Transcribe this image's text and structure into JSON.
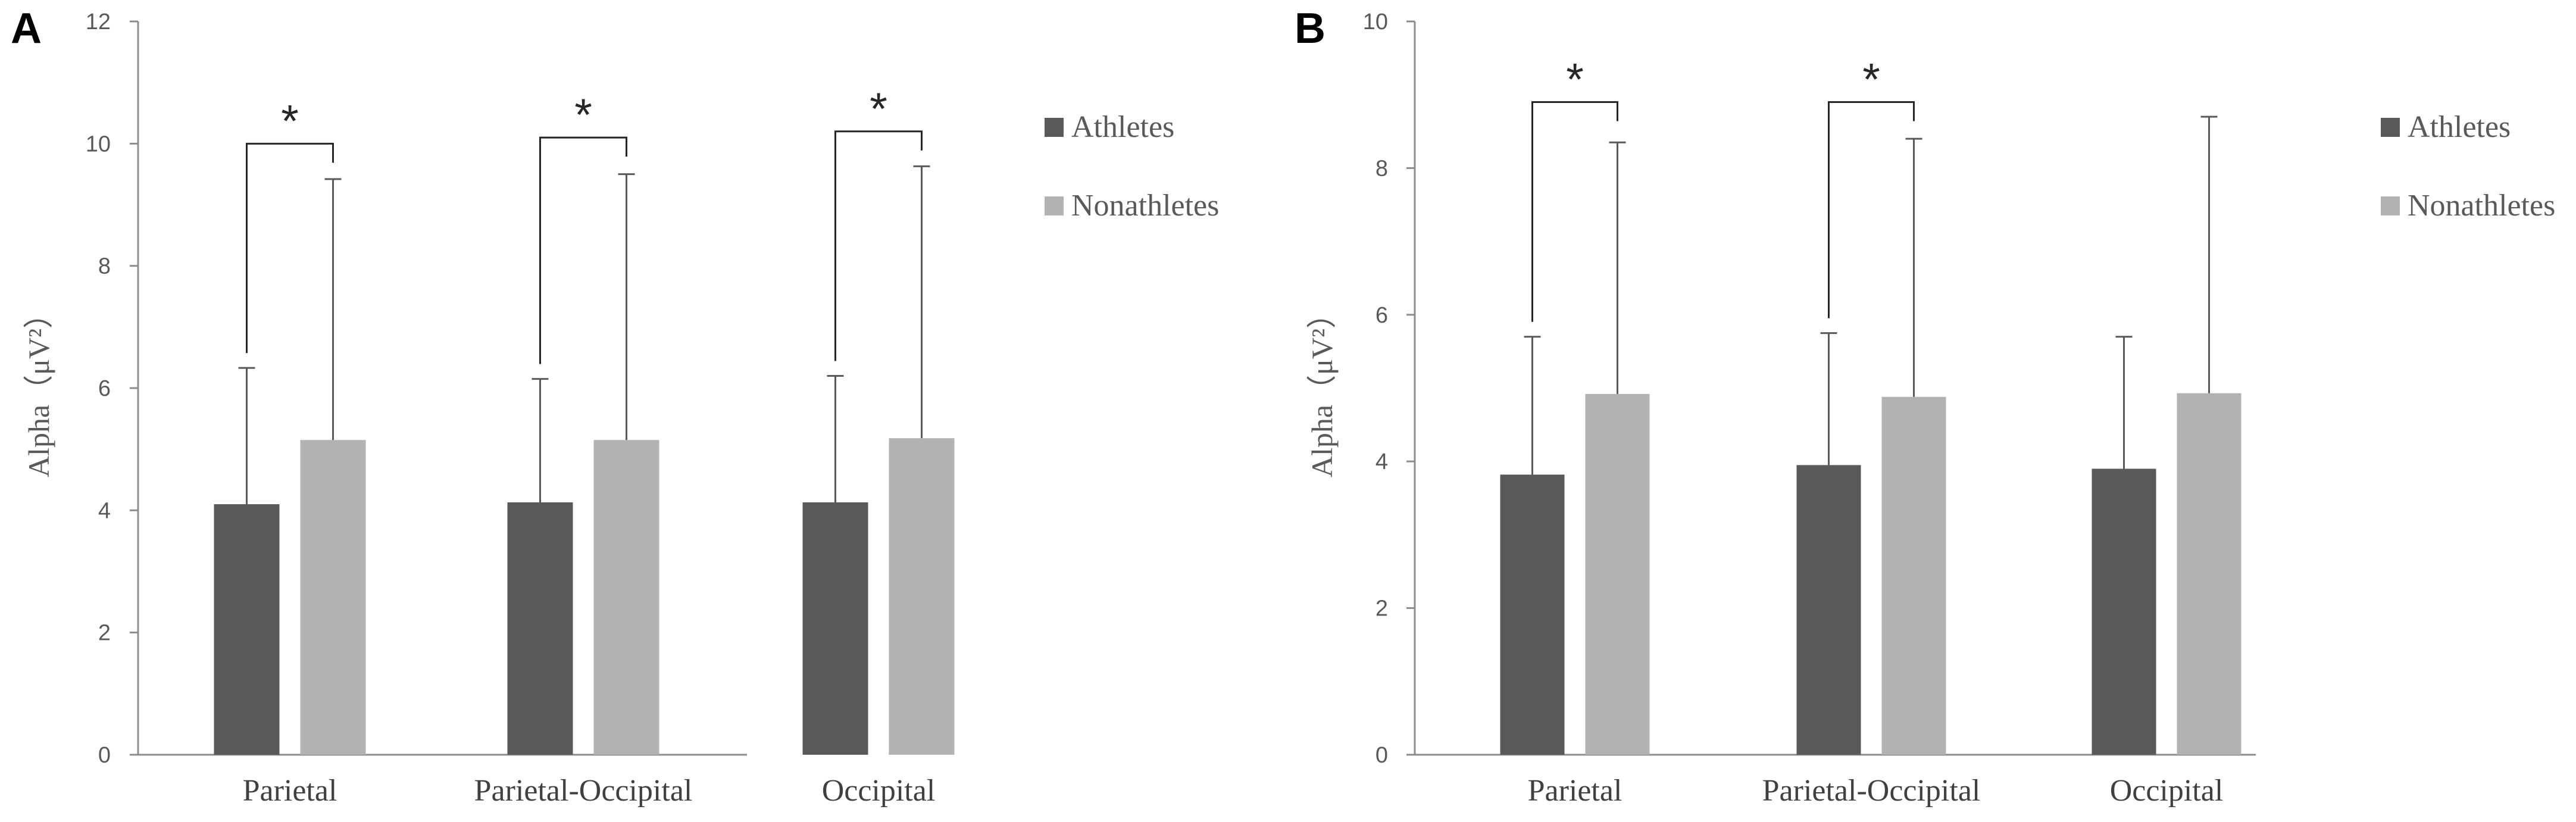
{
  "colors": {
    "athletes": "#595959",
    "nonathletes": "#b2b2b2",
    "axis": "#8c8c8c",
    "error": "#595959",
    "bracket": "#262626"
  },
  "chart_data": [
    {
      "panel": "A",
      "type": "bar",
      "ylabel": "Alpha（μV²）",
      "ylim": [
        0,
        12
      ],
      "yticks": [
        0,
        2,
        4,
        6,
        8,
        10,
        12
      ],
      "categories": [
        "Parietal",
        "Parietal-Occipital",
        "Occipital"
      ],
      "series": [
        {
          "name": "Athletes",
          "values": [
            4.1,
            4.13,
            4.13
          ],
          "error_upper": [
            6.33,
            6.15,
            6.2
          ]
        },
        {
          "name": "Nonathletes",
          "values": [
            5.15,
            5.15,
            5.18
          ],
          "error_upper": [
            9.42,
            9.5,
            9.63
          ]
        }
      ],
      "significance": [
        {
          "category_index": 0,
          "label": "*",
          "bracket_y": 10.0
        },
        {
          "category_index": 1,
          "label": "*",
          "bracket_y": 10.1
        },
        {
          "category_index": 2,
          "label": "*",
          "bracket_y": 10.2
        }
      ],
      "legend": [
        "Athletes",
        "Nonathletes"
      ]
    },
    {
      "panel": "B",
      "type": "bar",
      "ylabel": "Alpha（μV²）",
      "ylim": [
        0,
        10
      ],
      "yticks": [
        0,
        2,
        4,
        6,
        8,
        10
      ],
      "categories": [
        "Parietal",
        "Parietal-Occipital",
        "Occipital"
      ],
      "series": [
        {
          "name": "Athletes",
          "values": [
            3.82,
            3.95,
            3.9
          ],
          "error_upper": [
            5.7,
            5.75,
            5.7
          ]
        },
        {
          "name": "Nonathletes",
          "values": [
            4.92,
            4.88,
            4.93
          ],
          "error_upper": [
            8.35,
            8.4,
            8.7
          ]
        }
      ],
      "significance": [
        {
          "category_index": 0,
          "label": "*",
          "bracket_y": 8.9
        },
        {
          "category_index": 1,
          "label": "*",
          "bracket_y": 8.9
        }
      ],
      "legend": [
        "Athletes",
        "Nonathletes"
      ]
    }
  ]
}
